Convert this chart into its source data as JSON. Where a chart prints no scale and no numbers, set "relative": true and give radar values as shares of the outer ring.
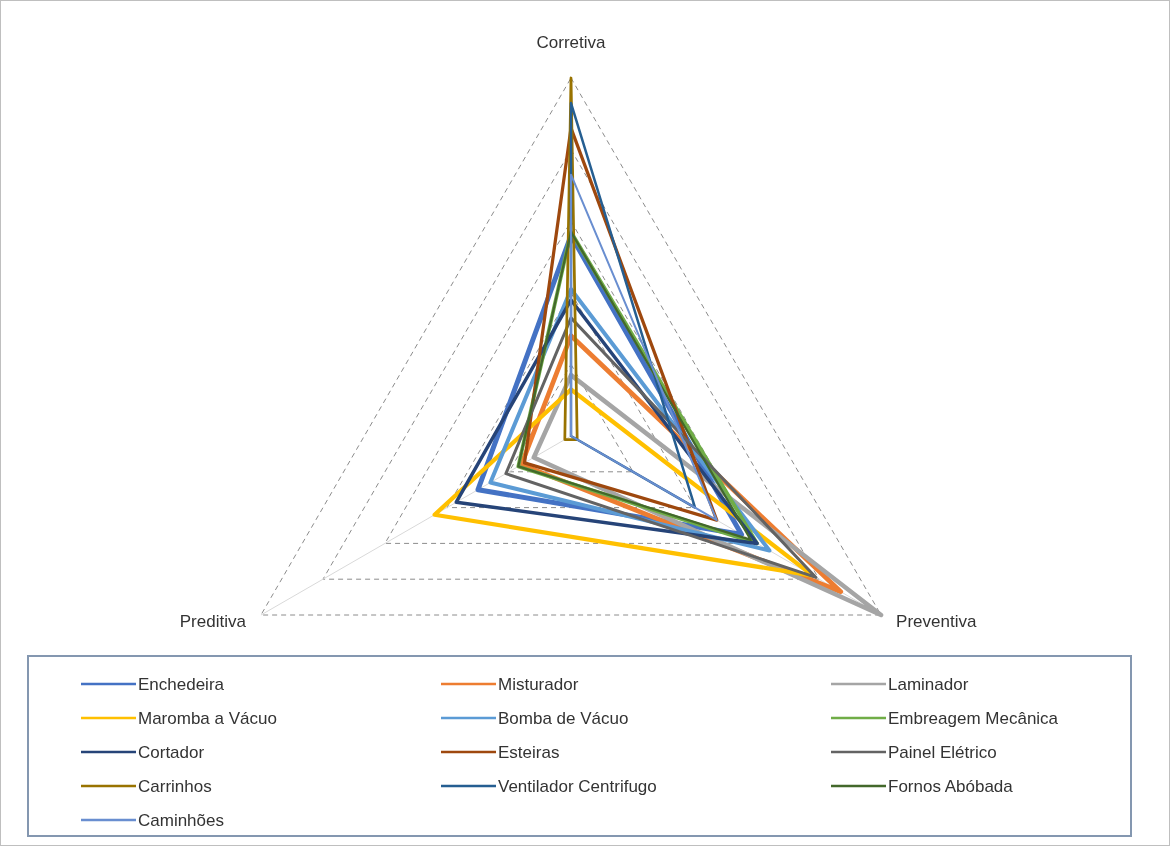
{
  "chart_data": {
    "type": "radar",
    "relative": true,
    "grid": true,
    "legend": "bottom",
    "categories": [
      "Corretiva",
      "Preventiva",
      "Preditiva"
    ],
    "series": [
      {
        "name": "Enchedeira",
        "color": "#4472c4",
        "values": [
          0.56,
          0.55,
          0.3
        ]
      },
      {
        "name": "Misturador",
        "color": "#ed7d31",
        "values": [
          0.28,
          0.87,
          0.16
        ]
      },
      {
        "name": "Laminador",
        "color": "#a5a5a5",
        "values": [
          0.17,
          1.0,
          0.12
        ]
      },
      {
        "name": "Maromba a Vácuo",
        "color": "#ffc000",
        "values": [
          0.13,
          0.78,
          0.44
        ]
      },
      {
        "name": "Bomba de Vácuo",
        "color": "#5b9bd5",
        "values": [
          0.41,
          0.64,
          0.26
        ]
      },
      {
        "name": "Embreagem Mecânica",
        "color": "#70ad47",
        "values": [
          0.57,
          0.6,
          0.17
        ]
      },
      {
        "name": "Cortador",
        "color": "#264478",
        "values": [
          0.38,
          0.6,
          0.37
        ]
      },
      {
        "name": "Esteiras",
        "color": "#9e480e",
        "values": [
          0.86,
          0.47,
          0.15
        ]
      },
      {
        "name": "Painel Elétrico",
        "color": "#636363",
        "values": [
          0.33,
          0.79,
          0.21
        ]
      },
      {
        "name": "Carrinhos",
        "color": "#997300",
        "values": [
          1.0,
          0.02,
          0.02
        ]
      },
      {
        "name": "Ventilador Centrifugo",
        "color": "#255e91",
        "values": [
          0.93,
          0.4,
          0
        ]
      },
      {
        "name": "Fornos Abóbada",
        "color": "#43682b",
        "values": [
          0.57,
          0.58,
          0.17
        ]
      },
      {
        "name": "Caminhões",
        "color": "#698ed0",
        "values": [
          0.73,
          0.47,
          0
        ]
      }
    ]
  }
}
